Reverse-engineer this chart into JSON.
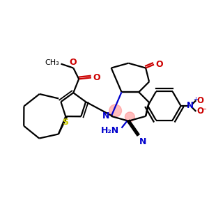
{
  "bg_color": "#ffffff",
  "bond_color": "#000000",
  "n_color": "#0000cc",
  "o_color": "#cc0000",
  "s_color": "#cccc00",
  "highlight_color": "#ff8888",
  "bond_width": 1.6,
  "figsize": [
    3.0,
    3.0
  ],
  "dpi": 100,
  "xlim": [
    0,
    300
  ],
  "ylim": [
    0,
    300
  ]
}
